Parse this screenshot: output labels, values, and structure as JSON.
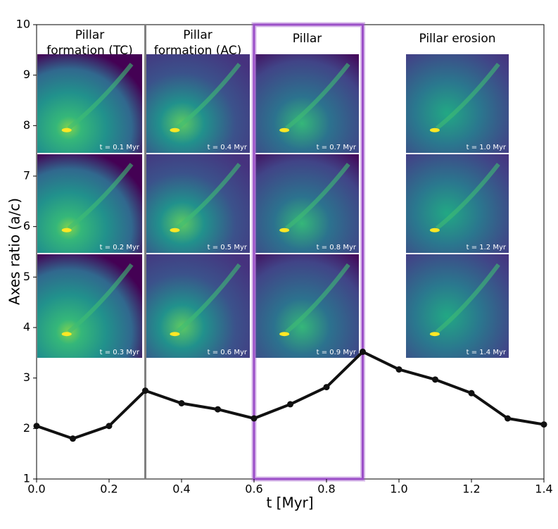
{
  "chart_data": {
    "type": "line",
    "x_label": "t [Myr]",
    "y_label": "Axes ratio (a/c)",
    "x": [
      0.0,
      0.1,
      0.2,
      0.3,
      0.4,
      0.5,
      0.6,
      0.7,
      0.8,
      0.9,
      1.0,
      1.1,
      1.2,
      1.3,
      1.4
    ],
    "series": [
      {
        "color": "#111111",
        "values": [
          2.05,
          1.8,
          2.05,
          2.75,
          2.5,
          2.38,
          2.2,
          2.48,
          2.82,
          3.52,
          3.17,
          2.97,
          2.7,
          2.2,
          2.08
        ]
      }
    ],
    "xlim": [
      0,
      1.4
    ],
    "xticks": [
      {
        "value": 0,
        "label": "0.0"
      },
      0.2,
      0.4,
      0.6,
      0.8,
      {
        "value": 1,
        "label": "1.0"
      },
      1.2,
      1.4
    ],
    "ylim": [
      1,
      10
    ],
    "yticks": [
      1,
      2,
      3,
      4,
      5,
      6,
      7,
      8,
      9,
      10
    ],
    "vline": {
      "x": 0.3,
      "color": "#808080"
    },
    "highlight": {
      "x": [
        0.6,
        0.9
      ],
      "color": "#9b4fc8"
    },
    "panels": [
      {
        "title": [
          "Pillar",
          "formation (TC)"
        ],
        "times": [
          "t = 0.1 Myr",
          "t = 0.2 Myr",
          "t = 0.3 Myr"
        ]
      },
      {
        "title": [
          "Pillar",
          "formation (AC)"
        ],
        "times": [
          "t = 0.4 Myr",
          "t = 0.5 Myr",
          "t = 0.6 Myr"
        ]
      },
      {
        "title": [
          "Pillar"
        ],
        "times": [
          "t = 0.7 Myr",
          "t = 0.8 Myr",
          "t = 0.9 Myr"
        ]
      },
      {
        "title": [
          "Pillar erosion"
        ],
        "times": [
          "t = 1.0 Myr",
          "t = 1.2 Myr",
          "t = 1.4 Myr"
        ]
      }
    ]
  }
}
